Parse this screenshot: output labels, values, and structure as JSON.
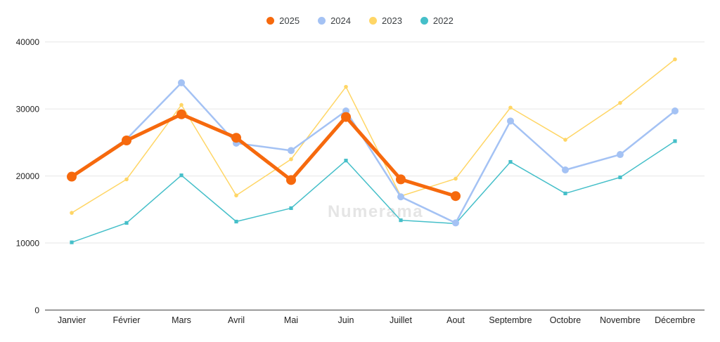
{
  "watermark": "Numerama",
  "legend": {
    "position": "top",
    "items": [
      {
        "label": "2025",
        "color": "#F6690D"
      },
      {
        "label": "2024",
        "color": "#A4C2F4"
      },
      {
        "label": "2023",
        "color": "#FFD666"
      },
      {
        "label": "2022",
        "color": "#45BFC9"
      }
    ]
  },
  "axes": {
    "y_tick_labels": [
      "0",
      "10000",
      "20000",
      "30000",
      "40000"
    ],
    "x_tick_labels": [
      "Janvier",
      "Février",
      "Mars",
      "Avril",
      "Mai",
      "Juin",
      "Juillet",
      "Aout",
      "Septembre",
      "Octobre",
      "Novembre",
      "Décembre"
    ],
    "gridline_color": "#e6e6e6",
    "axis_line_color": "#424242"
  },
  "chart_data": {
    "type": "line",
    "title": "",
    "xlabel": "",
    "ylabel": "",
    "ylim": [
      0,
      40000
    ],
    "yticks": [
      0,
      10000,
      20000,
      30000,
      40000
    ],
    "grid": true,
    "legend_position": "top",
    "categories": [
      "Janvier",
      "Février",
      "Mars",
      "Avril",
      "Mai",
      "Juin",
      "Juillet",
      "Aout",
      "Septembre",
      "Octobre",
      "Novembre",
      "Décembre"
    ],
    "series": [
      {
        "name": "2025",
        "color": "#F6690D",
        "line_width": 5,
        "point_radius": 7,
        "point_shape": "circle",
        "values": [
          19900,
          25300,
          29200,
          25700,
          19400,
          28800,
          19500,
          17000,
          null,
          null,
          null,
          null
        ]
      },
      {
        "name": "2024",
        "color": "#A4C2F4",
        "line_width": 2.5,
        "point_radius": 5,
        "point_shape": "circle",
        "values": [
          20000,
          25500,
          33900,
          24900,
          23800,
          29700,
          16900,
          13000,
          28200,
          20900,
          23200,
          29700
        ]
      },
      {
        "name": "2023",
        "color": "#FFD666",
        "line_width": 1.5,
        "point_radius": 2.8,
        "point_shape": "circle",
        "values": [
          14500,
          19500,
          30600,
          17100,
          22500,
          33300,
          17000,
          19600,
          30200,
          25400,
          30900,
          37400
        ]
      },
      {
        "name": "2022",
        "color": "#45BFC9",
        "line_width": 1.5,
        "point_radius": 2.6,
        "point_shape": "square",
        "values": [
          10100,
          13000,
          20100,
          13200,
          15200,
          22300,
          13400,
          12900,
          22100,
          17400,
          19800,
          25200
        ]
      }
    ]
  }
}
